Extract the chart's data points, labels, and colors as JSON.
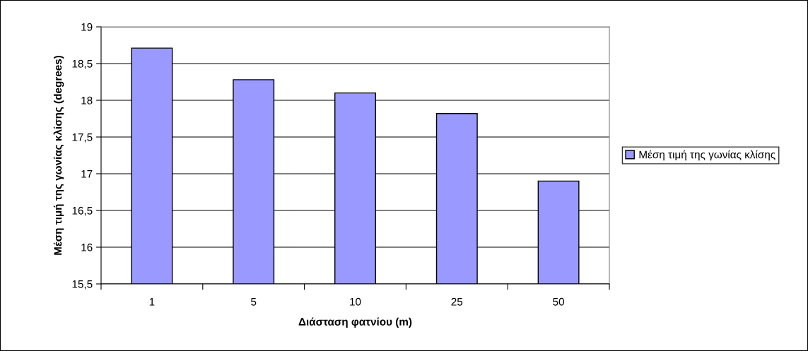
{
  "chart_data": {
    "type": "bar",
    "xlabel": "Διάσταση φατνίου (m)",
    "ylabel": "Μέση τιμή της γωνίας κλίσης (degrees)",
    "categories": [
      "1",
      "5",
      "10",
      "25",
      "50"
    ],
    "series": [
      {
        "name": "Μέση τιμή της γωνίας κλίσης",
        "color": "#9999ff",
        "values": [
          18.71,
          18.28,
          18.1,
          17.82,
          16.9
        ]
      }
    ],
    "ylim": [
      15.5,
      19
    ],
    "yticks": [
      {
        "value": 15.5,
        "label": "15,5"
      },
      16,
      {
        "value": 16.5,
        "label": "16,5"
      },
      17,
      {
        "value": 17.5,
        "label": "17,5"
      },
      18,
      {
        "value": 18.5,
        "label": "18,5"
      },
      19
    ],
    "grid": "y",
    "legend": "right"
  }
}
